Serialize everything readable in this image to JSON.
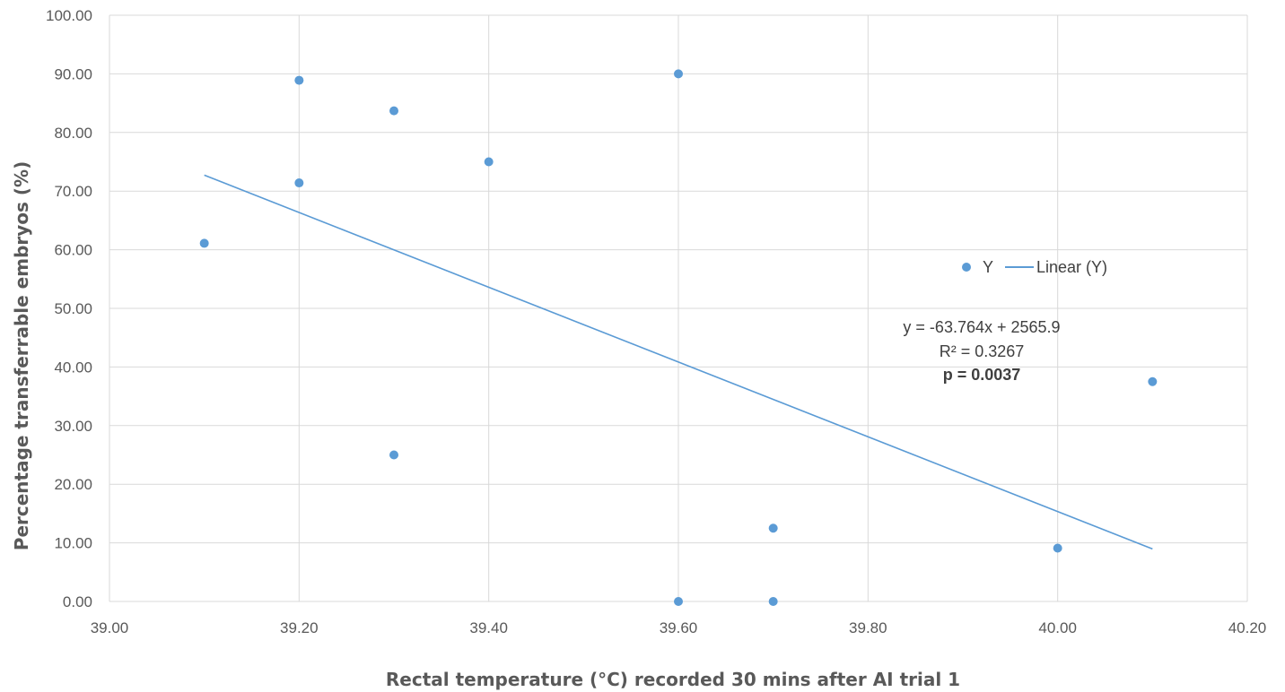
{
  "chart_data": {
    "type": "scatter",
    "xlabel": "Rectal temperature (°C) recorded 30 mins after AI trial 1",
    "ylabel": "Percentage transferrable embryos (%)",
    "xlim": [
      39.0,
      40.2
    ],
    "ylim": [
      0,
      100
    ],
    "x_ticks": [
      "39.00",
      "39.20",
      "39.40",
      "39.60",
      "39.80",
      "40.00",
      "40.20"
    ],
    "y_ticks": [
      "0.00",
      "10.00",
      "20.00",
      "30.00",
      "40.00",
      "50.00",
      "60.00",
      "70.00",
      "80.00",
      "90.00",
      "100.00"
    ],
    "x_tick_values": [
      39.0,
      39.2,
      39.4,
      39.6,
      39.8,
      40.0,
      40.2
    ],
    "y_tick_values": [
      0,
      10,
      20,
      30,
      40,
      50,
      60,
      70,
      80,
      90,
      100
    ],
    "grid": true,
    "legend_position": "right",
    "color": "#5B9BD5",
    "series": [
      {
        "name": "Y",
        "x": [
          39.1,
          39.2,
          39.2,
          39.3,
          39.3,
          39.4,
          39.6,
          39.6,
          39.7,
          39.7,
          40.0,
          40.1
        ],
        "y": [
          61.1,
          88.9,
          71.4,
          83.7,
          25.0,
          75.0,
          90.0,
          0.0,
          12.5,
          0.0,
          9.1,
          37.5
        ]
      }
    ],
    "trendline": {
      "name": "Linear (Y)",
      "slope": -63.764,
      "intercept": 2565.9,
      "x_range": [
        39.1,
        40.1
      ],
      "equation": "y = -63.764x + 2565.9",
      "r_squared": "R² = 0.3267",
      "p_value": "p = 0.0037"
    }
  }
}
